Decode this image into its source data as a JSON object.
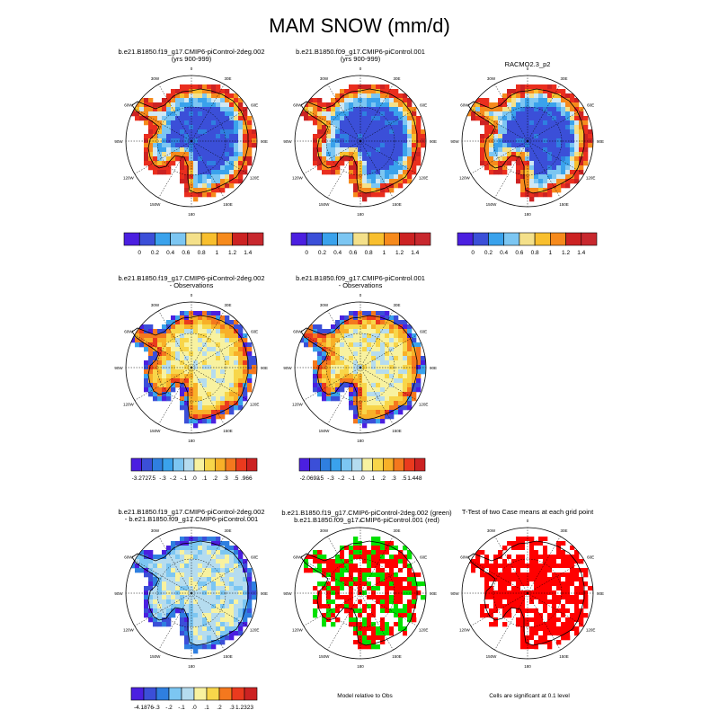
{
  "figure": {
    "title": "MAM SNOW (mm/d)"
  },
  "palettes": {
    "abs": [
      "#4b1fe0",
      "#3b4fd8",
      "#2f7fe0",
      "#3aa2ec",
      "#7cc6f2",
      "#cfe8f4",
      "#f4e08a",
      "#f8bf2e",
      "#f68a1c",
      "#ea2e1e",
      "#cc2222",
      "#c8282e"
    ],
    "diff": [
      "#4b1fe0",
      "#3b4fd8",
      "#2f7fe0",
      "#3aa2ec",
      "#7cc6f2",
      "#b5dcef",
      "#f8f2a0",
      "#f8d64a",
      "#f8b028",
      "#f4781e",
      "#ea3a1e",
      "#cc2222"
    ],
    "sig": [
      "#ff0000",
      "#00e000",
      "#ffffff"
    ]
  },
  "map_labels": {
    "lon_ticks": [
      "0",
      "30E",
      "60E",
      "90E",
      "120E",
      "150E",
      "180",
      "150W",
      "120W",
      "90W",
      "60W",
      "30W"
    ]
  },
  "chart_data": [
    {
      "type": "heatmap",
      "panel": "case1",
      "title": "b.e21.B1850.f19_g17.CMIP6-piControl-2deg.002",
      "subtitle": "(yrs 900-999)",
      "colorbar_labels": [
        "0",
        "0.2",
        "0.4",
        "0.6",
        "0.8",
        "1",
        "1.2",
        "1.4"
      ]
    },
    {
      "type": "heatmap",
      "panel": "case2",
      "title": "b.e21.B1850.f09_g17.CMIP6-piControl.001",
      "subtitle": "(yrs 900-999)",
      "colorbar_labels": [
        "0",
        "0.2",
        "0.4",
        "0.6",
        "0.8",
        "1",
        "1.2",
        "1.4"
      ]
    },
    {
      "type": "heatmap",
      "panel": "obs",
      "title": "RACMO2.3_p2",
      "subtitle": "",
      "colorbar_labels": [
        "0",
        "0.2",
        "0.4",
        "0.6",
        "0.8",
        "1",
        "1.2",
        "1.4"
      ]
    },
    {
      "type": "heatmap",
      "panel": "case1-obs",
      "title": "b.e21.B1850.f19_g17.CMIP6-piControl-2deg.002",
      "subtitle": "- Observations",
      "colorbar_labels": [
        "-3.2727",
        "-.5",
        "-.3",
        "-.2",
        "-.1",
        ".0",
        ".1",
        ".2",
        ".3",
        ".5",
        ".966"
      ]
    },
    {
      "type": "heatmap",
      "panel": "case2-obs",
      "title": "b.e21.B1850.f09_g17.CMIP6-piControl.001",
      "subtitle": "- Observations",
      "colorbar_labels": [
        "-2.0693",
        "-.5",
        "-.3",
        "-.2",
        "-.1",
        ".0",
        ".1",
        ".2",
        ".3",
        ".5",
        "1.448"
      ]
    },
    {
      "type": "heatmap",
      "panel": "case1-case2",
      "title": "b.e21.B1850.f19_g17.CMIP6-piControl-2deg.002",
      "subtitle": "- b.e21.B1850.f09_g17.CMIP6-piControl.001",
      "colorbar_labels": [
        "-4.1876",
        "-.3",
        "-.2",
        "-.1",
        ".0",
        ".1",
        ".2",
        ".3",
        "1.2323"
      ]
    },
    {
      "type": "heatmap",
      "panel": "model-vs-obs",
      "title": "b.e21.B1850.f19_g17.CMIP6-piControl-2deg.002 (green)",
      "subtitle": "b.e21.B1850.f09_g17.CMIP6-piControl.001 (red)",
      "note": "Model relative to Obs"
    },
    {
      "type": "heatmap",
      "panel": "ttest",
      "title": "T-Test of two Case means at each grid point",
      "subtitle": "",
      "note": "Cells are significant at 0.1 level"
    }
  ]
}
